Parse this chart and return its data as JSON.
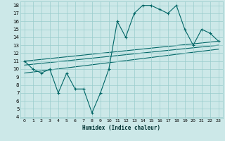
{
  "title": "",
  "xlabel": "Humidex (Indice chaleur)",
  "bg_color": "#cce8e8",
  "grid_color": "#99cccc",
  "line_color": "#006666",
  "xlim": [
    -0.5,
    23.5
  ],
  "ylim": [
    3.8,
    18.5
  ],
  "yticks": [
    4,
    5,
    6,
    7,
    8,
    9,
    10,
    11,
    12,
    13,
    14,
    15,
    16,
    17,
    18
  ],
  "xticks": [
    0,
    1,
    2,
    3,
    4,
    5,
    6,
    7,
    8,
    9,
    10,
    11,
    12,
    13,
    14,
    15,
    16,
    17,
    18,
    19,
    20,
    21,
    22,
    23
  ],
  "line1_x": [
    0,
    1,
    2,
    3,
    4,
    5,
    6,
    7,
    8,
    9,
    10,
    11,
    12,
    13,
    14,
    15,
    16,
    17,
    18,
    19,
    20,
    21,
    22,
    23
  ],
  "line1_y": [
    11,
    10,
    9.5,
    10,
    7,
    9.5,
    7.5,
    7.5,
    4.5,
    7,
    10,
    16,
    14,
    17,
    18,
    18,
    17.5,
    17,
    18,
    15,
    13,
    15,
    14.5,
    13.5
  ],
  "line2_x": [
    0,
    23
  ],
  "line2_y": [
    11,
    13.5
  ],
  "line3_x": [
    0,
    23
  ],
  "line3_y": [
    10.5,
    13.0
  ],
  "line4_x": [
    0,
    23
  ],
  "line4_y": [
    9.5,
    12.5
  ]
}
